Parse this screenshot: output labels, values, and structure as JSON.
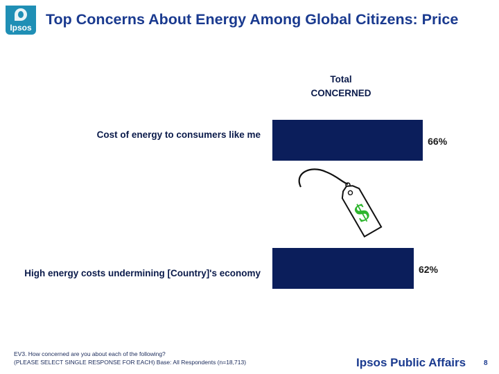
{
  "header": {
    "logo_text": "Ipsos",
    "title": "Top Concerns About Energy Among Global Citizens: Price"
  },
  "chart_data": {
    "type": "bar",
    "orientation": "horizontal",
    "column_header": [
      "Total",
      "CONCERNED"
    ],
    "categories": [
      "Cost of energy to consumers like me",
      "High energy costs undermining [Country]'s economy"
    ],
    "values": [
      66,
      62
    ],
    "value_labels": [
      "66%",
      "62%"
    ],
    "unit": "%",
    "xlim": [
      0,
      100
    ],
    "bar_color": "#0b1e5b",
    "grid": false,
    "legend": "none"
  },
  "decoration": {
    "icon": "dollar-price-tag-icon",
    "icon_color": "#2db52d"
  },
  "footer": {
    "note_line1": "EV3. How concerned are you about each of the following?",
    "note_line2": "(PLEASE SELECT SINGLE RESPONSE FOR EACH) Base: All Respondents (n=18,713)",
    "brand": "Ipsos Public Affairs",
    "page_number": "8"
  },
  "colors": {
    "title": "#1a3a8f",
    "logo": "#1f8fb5",
    "bar": "#0b1e5b"
  }
}
